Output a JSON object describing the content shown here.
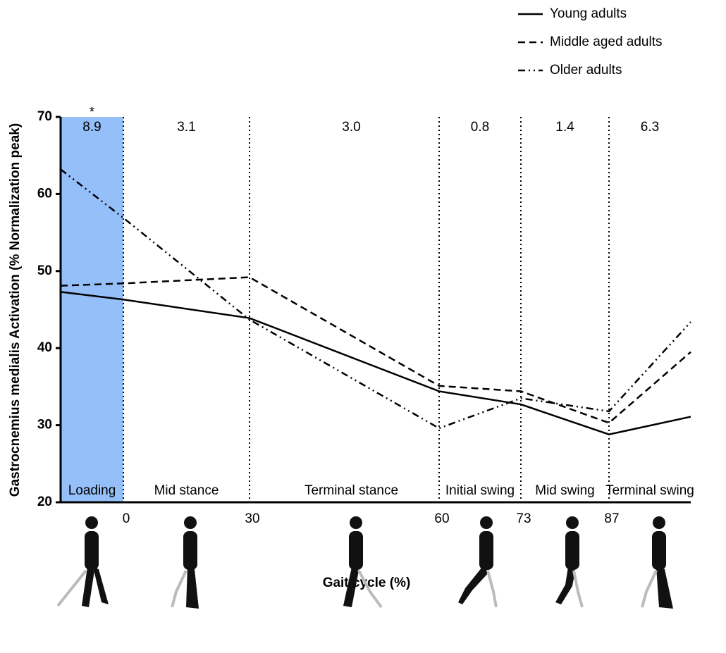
{
  "chart_data": {
    "type": "line",
    "x_label": "Gait cycle (%)",
    "y_label": "Gastrocnemius medialis Activation (% Normalization peak)",
    "categories": [
      null,
      "0",
      "30",
      "60",
      "73",
      "87",
      null
    ],
    "ylim": [
      20,
      70
    ],
    "yticks": [
      20,
      30,
      40,
      50,
      60,
      70
    ],
    "phases": {
      "names": [
        "Loading",
        "Mid stance",
        "Terminal stance",
        "Initial swing",
        "Mid swing",
        "Terminal swing"
      ],
      "values": [
        8.9,
        3.1,
        3.0,
        0.8,
        1.4,
        6.3
      ],
      "value_labels": [
        "8.9",
        "3.1",
        "3.0",
        "0.8",
        "1.4",
        "6.3"
      ],
      "color": "#94bff8"
    },
    "annotations": [
      "*"
    ],
    "series": [
      {
        "name": "Young adults",
        "color": "#000000",
        "dash": "solid",
        "values": [
          47.3,
          46.3,
          43.9,
          34.4,
          32.7,
          28.8,
          31.1
        ]
      },
      {
        "name": "Middle aged adults",
        "color": "#000000",
        "dash": "dashed",
        "values": [
          48.1,
          48.4,
          49.2,
          35.1,
          34.4,
          30.3,
          39.5
        ]
      },
      {
        "name": "Older adults",
        "color": "#000000",
        "dash": "dashdotdot",
        "values": [
          63.2,
          56.9,
          43.7,
          29.6,
          33.5,
          31.8,
          43.4
        ]
      }
    ]
  }
}
